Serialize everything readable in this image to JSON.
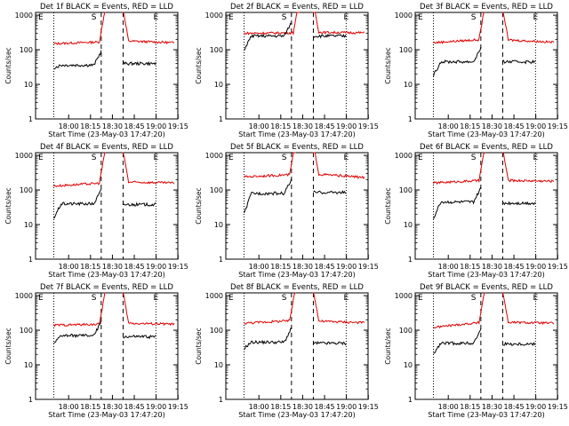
{
  "chart_data": [
    {
      "type": "line",
      "title": "Det 1f BLACK = Events, RED = LLD",
      "xlabel": "Start Time (23-May-03 17:47:20)",
      "ylabel": "Counts/sec",
      "x_ticks": [
        "18:00",
        "18:15",
        "18:30",
        "18:45",
        "19:00",
        "19:15"
      ],
      "y_ticks": [
        "1",
        "10",
        "100",
        "1000"
      ],
      "x_range_min": [
        -4,
        35
      ],
      "y_scale": "log",
      "ylim": [
        1,
        1200
      ],
      "markers": {
        "S": 12,
        "E": 29
      },
      "red": {
        "start_y": 150,
        "end_y": 160,
        "pre_level": 170,
        "post_level": 180,
        "gap": [
          15,
          20
        ]
      },
      "black": {
        "start_y": 30,
        "pre_level": 36,
        "post_level": 40,
        "segments": [
          [
            1,
            14
          ],
          [
            20,
            29
          ]
        ]
      }
    },
    {
      "type": "line",
      "title": "Det 2f BLACK = Events, RED = LLD",
      "xlabel": "Start Time (23-May-03 17:47:20)",
      "ylabel": "Counts/sec",
      "x_ticks": [
        "18:00",
        "18:15",
        "18:30",
        "18:45",
        "19:00",
        "19:15"
      ],
      "y_ticks": [
        "1",
        "10",
        "100",
        "1000"
      ],
      "x_range_min": [
        -4,
        35
      ],
      "y_scale": "log",
      "ylim": [
        1,
        1200
      ],
      "markers": {
        "S": 12,
        "E": 29
      },
      "red": {
        "start_y": 300,
        "end_y": 310,
        "pre_level": 310,
        "post_level": 320,
        "gap": [
          16,
          20
        ]
      },
      "black": {
        "start_y": 100,
        "pre_level": 250,
        "post_level": 250,
        "segments": [
          [
            1,
            14
          ],
          [
            20,
            29
          ]
        ]
      }
    },
    {
      "type": "line",
      "title": "Det 3f BLACK = Events, RED = LLD",
      "xlabel": "Start Time (23-May-03 17:47:20)",
      "ylabel": "Counts/sec",
      "x_ticks": [
        "18:00",
        "18:15",
        "18:30",
        "18:45",
        "19:00",
        "19:15"
      ],
      "y_ticks": [
        "1",
        "10",
        "100",
        "1000"
      ],
      "x_range_min": [
        -4,
        35
      ],
      "y_scale": "log",
      "ylim": [
        1,
        1200
      ],
      "markers": {
        "S": 12,
        "E": 29
      },
      "red": {
        "start_y": 160,
        "end_y": 165,
        "pre_level": 200,
        "post_level": 195,
        "gap": [
          15,
          20
        ]
      },
      "black": {
        "start_y": 18,
        "pre_level": 45,
        "post_level": 45,
        "segments": [
          [
            1,
            14
          ],
          [
            20,
            29
          ]
        ]
      }
    },
    {
      "type": "line",
      "title": "Det 4f BLACK = Events, RED = LLD",
      "xlabel": "Start Time (23-May-03 17:47:20)",
      "ylabel": "Counts/sec",
      "x_ticks": [
        "18:00",
        "18:15",
        "18:30",
        "18:45",
        "19:00",
        "19:15"
      ],
      "y_ticks": [
        "1",
        "10",
        "100",
        "1000"
      ],
      "x_range_min": [
        -4,
        35
      ],
      "y_scale": "log",
      "ylim": [
        1,
        1200
      ],
      "markers": {
        "S": 12,
        "E": 29
      },
      "red": {
        "start_y": 130,
        "end_y": 160,
        "pre_level": 160,
        "post_level": 170,
        "gap": [
          15,
          20
        ]
      },
      "black": {
        "start_y": 15,
        "pre_level": 40,
        "post_level": 38,
        "segments": [
          [
            1,
            14
          ],
          [
            20,
            29
          ]
        ]
      }
    },
    {
      "type": "line",
      "title": "Det 5f BLACK = Events, RED = LLD",
      "xlabel": "Start Time (23-May-03 17:47:20)",
      "ylabel": "Counts/sec",
      "x_ticks": [
        "18:00",
        "18:15",
        "18:30",
        "18:45",
        "19:00",
        "19:15"
      ],
      "y_ticks": [
        "1",
        "10",
        "100",
        "1000"
      ],
      "x_range_min": [
        -4,
        35
      ],
      "y_scale": "log",
      "ylim": [
        1,
        1200
      ],
      "markers": {
        "S": 12,
        "E": 29
      },
      "red": {
        "start_y": 240,
        "end_y": 230,
        "pre_level": 280,
        "post_level": 290,
        "gap": [
          15,
          20
        ]
      },
      "black": {
        "start_y": 20,
        "pre_level": 80,
        "post_level": 85,
        "segments": [
          [
            1,
            14
          ],
          [
            20,
            29
          ]
        ]
      }
    },
    {
      "type": "line",
      "title": "Det 6f BLACK = Events, RED = LLD",
      "xlabel": "Start Time (23-May-03 17:47:20)",
      "ylabel": "Counts/sec",
      "x_ticks": [
        "18:00",
        "18:15",
        "18:30",
        "18:45",
        "19:00",
        "19:15"
      ],
      "y_ticks": [
        "1",
        "10",
        "100",
        "1000"
      ],
      "x_range_min": [
        -4,
        35
      ],
      "y_scale": "log",
      "ylim": [
        1,
        1200
      ],
      "markers": {
        "S": 12,
        "E": 29
      },
      "red": {
        "start_y": 160,
        "end_y": 180,
        "pre_level": 190,
        "post_level": 190,
        "gap": [
          15,
          20
        ]
      },
      "black": {
        "start_y": 15,
        "pre_level": 45,
        "post_level": 42,
        "segments": [
          [
            1,
            14
          ],
          [
            20,
            29
          ]
        ]
      }
    },
    {
      "type": "line",
      "title": "Det 7f BLACK = Events, RED = LLD",
      "xlabel": "Start Time (23-May-03 17:47:20)",
      "ylabel": "Counts/sec",
      "x_ticks": [
        "18:00",
        "18:15",
        "18:30",
        "18:45",
        "19:00",
        "19:15"
      ],
      "y_ticks": [
        "1",
        "10",
        "100",
        "1000"
      ],
      "x_range_min": [
        -4,
        35
      ],
      "y_scale": "log",
      "ylim": [
        1,
        1200
      ],
      "markers": {
        "S": 12,
        "E": 29
      },
      "red": {
        "start_y": 140,
        "end_y": 150,
        "pre_level": 150,
        "post_level": 160,
        "gap": [
          15,
          20
        ]
      },
      "black": {
        "start_y": 40,
        "pre_level": 70,
        "post_level": 65,
        "segments": [
          [
            1,
            14
          ],
          [
            20,
            29
          ]
        ]
      }
    },
    {
      "type": "line",
      "title": "Det 8f BLACK = Events, RED = LLD",
      "xlabel": "Start Time (23-May-03 17:47:20)",
      "ylabel": "Counts/sec",
      "x_ticks": [
        "18:00",
        "18:15",
        "18:30",
        "18:45",
        "19:00",
        "19:15"
      ],
      "y_ticks": [
        "1",
        "10",
        "100",
        "1000"
      ],
      "x_range_min": [
        -4,
        35
      ],
      "y_scale": "log",
      "ylim": [
        1,
        1200
      ],
      "markers": {
        "S": 12,
        "E": 29
      },
      "red": {
        "start_y": 160,
        "end_y": 165,
        "pre_level": 190,
        "post_level": 185,
        "gap": [
          15,
          20
        ]
      },
      "black": {
        "start_y": 30,
        "pre_level": 45,
        "post_level": 42,
        "segments": [
          [
            1,
            14
          ],
          [
            20,
            29
          ]
        ]
      }
    },
    {
      "type": "line",
      "title": "Det 9f BLACK = Events, RED = LLD",
      "xlabel": "Start Time (23-May-03 17:47:20)",
      "ylabel": "Counts/sec",
      "x_ticks": [
        "18:00",
        "18:15",
        "18:30",
        "18:45",
        "19:00",
        "19:15"
      ],
      "y_ticks": [
        "1",
        "10",
        "100",
        "1000"
      ],
      "x_range_min": [
        -4,
        35
      ],
      "y_scale": "log",
      "ylim": [
        1,
        1200
      ],
      "markers": {
        "S": 12,
        "E": 29
      },
      "red": {
        "start_y": 120,
        "end_y": 160,
        "pre_level": 170,
        "post_level": 170,
        "gap": [
          15,
          20
        ]
      },
      "black": {
        "start_y": 20,
        "pre_level": 42,
        "post_level": 40,
        "segments": [
          [
            1,
            14
          ],
          [
            20,
            29
          ]
        ]
      }
    }
  ]
}
